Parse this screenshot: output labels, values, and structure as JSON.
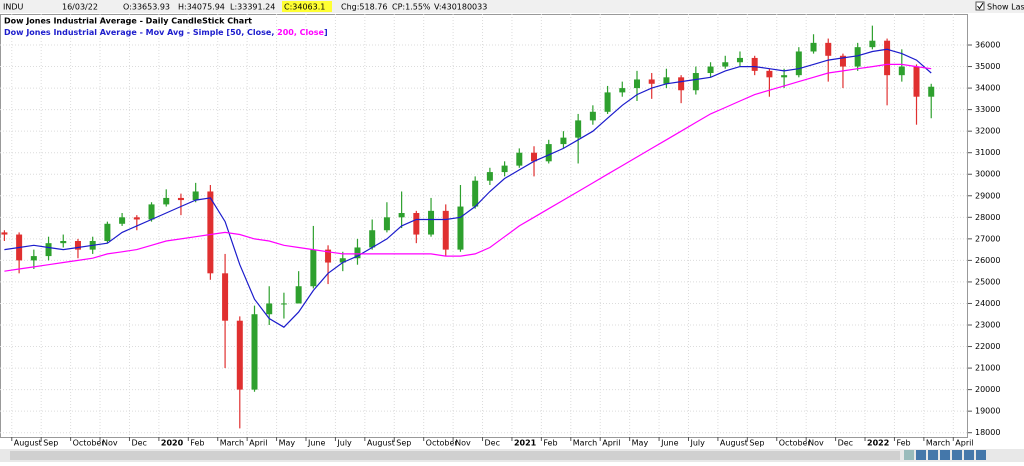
{
  "header": {
    "symbol": "INDU",
    "date": "16/03/22",
    "open": "O:33653.93",
    "high": "H:34075.94",
    "low": "L:33391.24",
    "close": "C:34063.1",
    "change": "Chg:518.76",
    "change_pct": "CP:1.55%",
    "volume": "V:430180033",
    "show_last": "Show Last"
  },
  "chart_data": {
    "type": "candlestick",
    "title": "Dow Jones Industrial Average - Daily CandleStick Chart",
    "ma_legend": {
      "prefix": "Dow Jones Industrial Average - Mov Avg - Simple [",
      "separator": ", ",
      "suffix": "]"
    },
    "up_color": "#2ea02e",
    "down_color": "#e03030",
    "x": [
      -0.25,
      0.25,
      0.75,
      1.25,
      1.75,
      2.25,
      2.75,
      3.25,
      3.75,
      4.25,
      4.75,
      5.25,
      5.75,
      6.25,
      6.75,
      7.25,
      7.75,
      8.25,
      8.75,
      9.25,
      9.75,
      10.25,
      10.75,
      11.25,
      11.75,
      12.25,
      12.75,
      13.25,
      13.75,
      14.25,
      14.75,
      15.25,
      15.75,
      16.25,
      16.75,
      17.25,
      17.75,
      18.25,
      18.75,
      19.25,
      19.75,
      20.25,
      20.75,
      21.25,
      21.75,
      22.25,
      22.75,
      23.25,
      23.75,
      24.25,
      24.75,
      25.25,
      25.75,
      26.25,
      26.75,
      27.25,
      27.75,
      28.25,
      28.75,
      29.25,
      29.75,
      30.25,
      30.75,
      31.25
    ],
    "open": [
      27300,
      27200,
      26000,
      26200,
      26800,
      26900,
      26500,
      26900,
      27700,
      28000,
      27900,
      28600,
      28900,
      28800,
      29200,
      25400,
      23200,
      20000,
      23500,
      24000,
      24000,
      24800,
      26500,
      25900,
      26100,
      26600,
      27400,
      28000,
      28200,
      27200,
      28300,
      26500,
      28500,
      29700,
      30100,
      30400,
      31000,
      30600,
      31400,
      31700,
      32500,
      32900,
      33800,
      34000,
      34400,
      34200,
      34500,
      33900,
      34700,
      35000,
      35200,
      35400,
      34800,
      34500,
      34600,
      35700,
      36100,
      35500,
      35000,
      35900,
      36200,
      34600,
      35000,
      33600
    ],
    "high": [
      27400,
      27300,
      26500,
      27100,
      27200,
      27000,
      27100,
      27800,
      28200,
      28100,
      28700,
      29300,
      29100,
      29600,
      29500,
      26300,
      23400,
      23900,
      24800,
      24500,
      25500,
      27600,
      26700,
      26400,
      27000,
      27900,
      28700,
      29200,
      28300,
      28900,
      28600,
      29500,
      29900,
      30300,
      30600,
      31200,
      31300,
      31600,
      32000,
      32800,
      33200,
      34100,
      34300,
      34800,
      34700,
      34900,
      34600,
      35000,
      35200,
      35500,
      35700,
      35500,
      34900,
      34900,
      35900,
      36500,
      36300,
      35600,
      36100,
      36900,
      36300,
      35800,
      35100,
      34200
    ],
    "low": [
      26900,
      25400,
      25600,
      26000,
      26600,
      26100,
      26300,
      26800,
      27600,
      27400,
      27800,
      28500,
      28100,
      28700,
      25100,
      21000,
      18200,
      19900,
      23000,
      23300,
      24000,
      24700,
      24900,
      25500,
      25800,
      26500,
      27300,
      27500,
      26800,
      27100,
      26200,
      26400,
      28400,
      29500,
      29900,
      30300,
      29900,
      30500,
      31200,
      30500,
      32300,
      32800,
      33600,
      33400,
      33500,
      34000,
      33300,
      33700,
      34500,
      34900,
      35000,
      34600,
      33600,
      34000,
      34500,
      35600,
      34300,
      34000,
      34800,
      35800,
      33200,
      34300,
      32300,
      32600
    ],
    "close": [
      27200,
      26000,
      26200,
      26800,
      26900,
      26500,
      26900,
      27700,
      28000,
      27900,
      28600,
      28900,
      28800,
      29200,
      25400,
      23200,
      20000,
      23500,
      24000,
      24000,
      24800,
      26500,
      25900,
      26100,
      26600,
      27400,
      28000,
      28200,
      27200,
      28300,
      26500,
      28500,
      29700,
      30100,
      30400,
      31000,
      30600,
      31400,
      31700,
      32500,
      32900,
      33800,
      34000,
      34400,
      34200,
      34500,
      33900,
      34700,
      35000,
      35200,
      35400,
      34800,
      34500,
      34600,
      35700,
      36100,
      35500,
      35000,
      35900,
      36200,
      34600,
      35000,
      33600,
      34063
    ],
    "series": [
      {
        "name": "50, Close",
        "color": "#1c1ccc",
        "values": [
          26500,
          26600,
          26700,
          26600,
          26500,
          26600,
          26700,
          26800,
          27300,
          27600,
          27900,
          28200,
          28500,
          28800,
          28900,
          27800,
          25800,
          24200,
          23300,
          22900,
          23600,
          24600,
          25400,
          25900,
          26200,
          26600,
          27000,
          27600,
          27900,
          27900,
          27900,
          28000,
          28500,
          29200,
          29800,
          30200,
          30600,
          30900,
          31200,
          31600,
          32000,
          32600,
          33200,
          33700,
          34000,
          34200,
          34300,
          34400,
          34500,
          34800,
          35000,
          35000,
          34900,
          34800,
          34900,
          35100,
          35300,
          35400,
          35500,
          35700,
          35800,
          35600,
          35300,
          34700
        ]
      },
      {
        "name": "200, Close",
        "color": "#ff00ff",
        "values": [
          25500,
          25600,
          25700,
          25800,
          25900,
          26000,
          26100,
          26300,
          26400,
          26500,
          26700,
          26900,
          27000,
          27100,
          27200,
          27300,
          27200,
          27000,
          26900,
          26700,
          26600,
          26500,
          26400,
          26300,
          26300,
          26300,
          26300,
          26300,
          26300,
          26300,
          26200,
          26200,
          26300,
          26600,
          27100,
          27600,
          28000,
          28400,
          28800,
          29200,
          29600,
          30000,
          30400,
          30800,
          31200,
          31600,
          32000,
          32400,
          32800,
          33100,
          33400,
          33700,
          33900,
          34100,
          34300,
          34500,
          34700,
          34800,
          34900,
          35000,
          35100,
          35100,
          35000,
          34900
        ]
      }
    ],
    "xlim": [
      -0.4,
      32.5
    ],
    "xticks": [
      {
        "value": 0,
        "label": "August"
      },
      {
        "value": 1,
        "label": "Sep"
      },
      {
        "value": 2,
        "label": "October"
      },
      {
        "value": 3,
        "label": "Nov"
      },
      {
        "value": 4,
        "label": "Dec"
      },
      {
        "value": 5,
        "label": "2020"
      },
      {
        "value": 6,
        "label": "Feb"
      },
      {
        "value": 7,
        "label": "March"
      },
      {
        "value": 8,
        "label": "April"
      },
      {
        "value": 9,
        "label": "May"
      },
      {
        "value": 10,
        "label": "June"
      },
      {
        "value": 11,
        "label": "July"
      },
      {
        "value": 12,
        "label": "August"
      },
      {
        "value": 13,
        "label": "Sep"
      },
      {
        "value": 14,
        "label": "October"
      },
      {
        "value": 15,
        "label": "Nov"
      },
      {
        "value": 16,
        "label": "Dec"
      },
      {
        "value": 17,
        "label": "2021"
      },
      {
        "value": 18,
        "label": "Feb"
      },
      {
        "value": 19,
        "label": "March"
      },
      {
        "value": 20,
        "label": "April"
      },
      {
        "value": 21,
        "label": "May"
      },
      {
        "value": 22,
        "label": "June"
      },
      {
        "value": 23,
        "label": "July"
      },
      {
        "value": 24,
        "label": "August"
      },
      {
        "value": 25,
        "label": "Sep"
      },
      {
        "value": 26,
        "label": "October"
      },
      {
        "value": 27,
        "label": "Nov"
      },
      {
        "value": 28,
        "label": "Dec"
      },
      {
        "value": 29,
        "label": "2022"
      },
      {
        "value": 30,
        "label": "Feb"
      },
      {
        "value": 31,
        "label": "March"
      },
      {
        "value": 32,
        "label": "April"
      }
    ],
    "ylim": [
      17800,
      37440
    ],
    "yticks": [
      18000,
      19000,
      20000,
      21000,
      22000,
      23000,
      24000,
      25000,
      26000,
      27000,
      28000,
      29000,
      30000,
      31000,
      32000,
      33000,
      34000,
      35000,
      36000
    ],
    "grid": true
  }
}
